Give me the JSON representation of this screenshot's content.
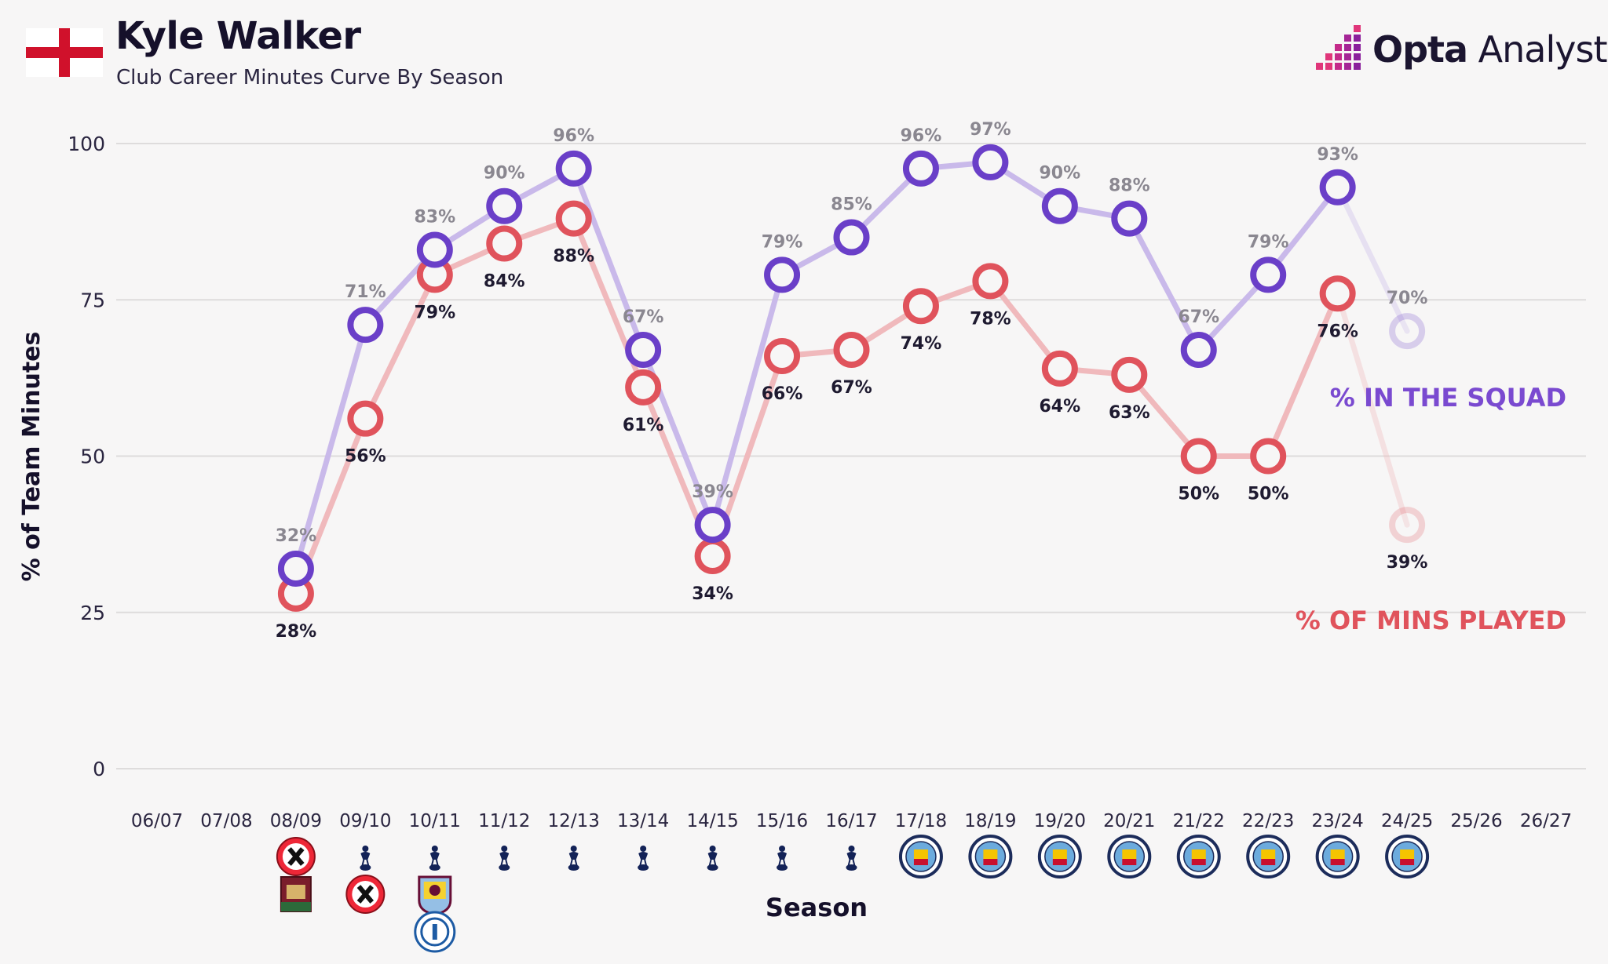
{
  "header": {
    "title": "Kyle Walker",
    "subtitle": "Club Career Minutes Curve By Season",
    "flag": "england-flag",
    "brand": {
      "name_bold": "Opta",
      "name_light": " Analyst"
    }
  },
  "colors": {
    "squad": "#6a3fc8",
    "squad_line": "#c9b9ea",
    "mins": "#e0535c",
    "mins_line": "#f0b9bc",
    "grid": "#dedcdc",
    "axis_text": "#2a2540",
    "label_top": "#8a8790",
    "label_bottom": "#1e1a30"
  },
  "chart_data": {
    "type": "line",
    "title": "Club Career Minutes Curve By Season",
    "xlabel": "Season",
    "ylabel": "% of Team Minutes",
    "ylim": [
      0,
      100
    ],
    "yticks": [
      0,
      25,
      50,
      75,
      100
    ],
    "grid": true,
    "categories": [
      "06/07",
      "07/08",
      "08/09",
      "09/10",
      "10/11",
      "11/12",
      "12/13",
      "13/14",
      "14/15",
      "15/16",
      "16/17",
      "17/18",
      "18/19",
      "19/20",
      "20/21",
      "21/22",
      "22/23",
      "23/24",
      "24/25",
      "25/26",
      "26/27"
    ],
    "series": [
      {
        "name": "% IN THE SQUAD",
        "values": [
          null,
          null,
          32,
          71,
          83,
          90,
          96,
          67,
          39,
          79,
          85,
          96,
          97,
          90,
          88,
          67,
          79,
          93,
          70,
          null,
          null
        ],
        "labels": [
          "",
          "",
          "32%",
          "71%",
          "83%",
          "90%",
          "96%",
          "67%",
          "39%",
          "79%",
          "85%",
          "96%",
          "97%",
          "90%",
          "88%",
          "67%",
          "79%",
          "93%",
          "70%",
          "",
          ""
        ]
      },
      {
        "name": "% OF MINS PLAYED",
        "values": [
          null,
          null,
          28,
          56,
          79,
          84,
          88,
          61,
          34,
          66,
          67,
          74,
          78,
          64,
          63,
          50,
          50,
          76,
          39,
          null,
          null
        ],
        "labels": [
          "",
          "",
          "28%",
          "56%",
          "79%",
          "84%",
          "88%",
          "61%",
          "34%",
          "66%",
          "67%",
          "74%",
          "78%",
          "64%",
          "63%",
          "50%",
          "50%",
          "76%",
          "39%",
          "",
          ""
        ]
      }
    ],
    "current_season_index": 18,
    "clubs_by_season": [
      [],
      [],
      [
        "sheffield-united",
        "northampton-town"
      ],
      [
        "tottenham",
        "sheffield-united"
      ],
      [
        "tottenham",
        "aston-villa",
        "qpr"
      ],
      [
        "tottenham"
      ],
      [
        "tottenham"
      ],
      [
        "tottenham"
      ],
      [
        "tottenham"
      ],
      [
        "tottenham"
      ],
      [
        "tottenham"
      ],
      [
        "manchester-city"
      ],
      [
        "manchester-city"
      ],
      [
        "manchester-city"
      ],
      [
        "manchester-city"
      ],
      [
        "manchester-city"
      ],
      [
        "manchester-city"
      ],
      [
        "manchester-city"
      ],
      [
        "manchester-city"
      ],
      [],
      []
    ]
  }
}
